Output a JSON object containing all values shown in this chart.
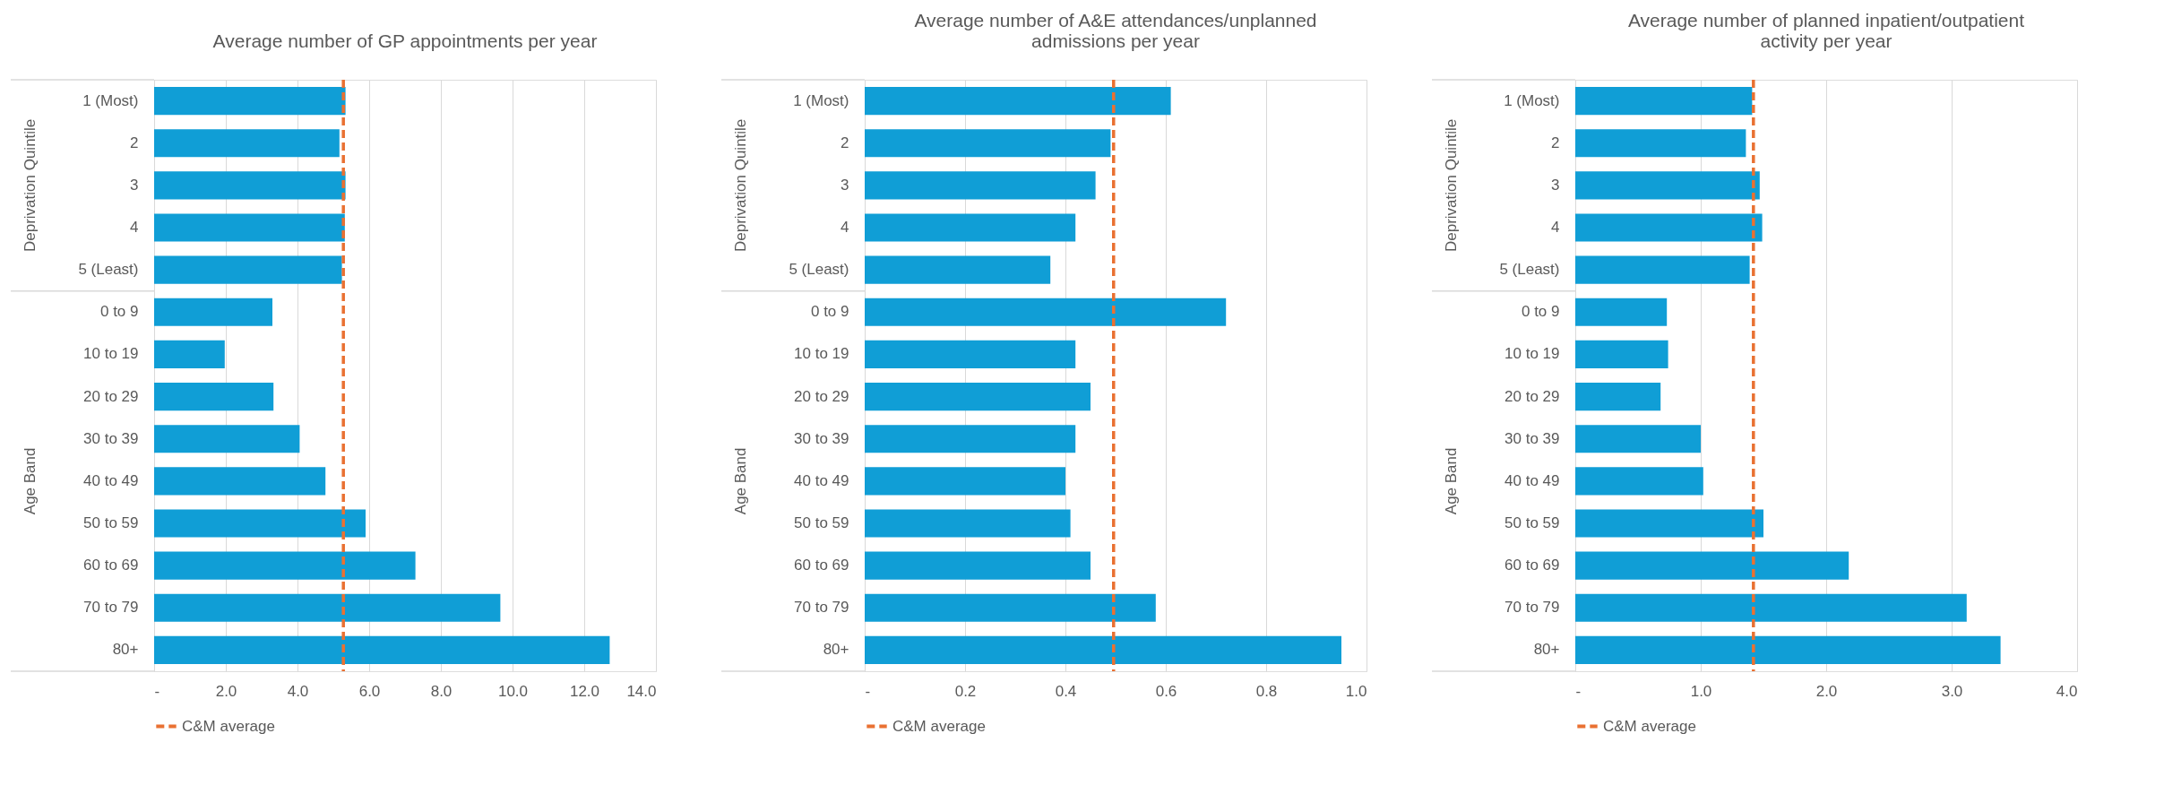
{
  "chart_data": [
    {
      "type": "bar",
      "orientation": "horizontal",
      "title": "Average number of GP appointments per year",
      "categories": [
        "1 (Most)",
        "2",
        "3",
        "4",
        "5 (Least)",
        "0 to 9",
        "10 to 19",
        "20 to 29",
        "30 to 39",
        "40 to 49",
        "50 to 59",
        "60 to 69",
        "70 to 79",
        "80+"
      ],
      "values": [
        5.34,
        5.17,
        5.34,
        5.32,
        5.24,
        3.3,
        1.97,
        3.33,
        4.06,
        4.78,
        5.9,
        7.29,
        9.66,
        12.71
      ],
      "color": "#109ed6",
      "xlim": [
        0,
        14
      ],
      "xticks": [
        {
          "value": 0,
          "label": "-"
        },
        {
          "value": 2,
          "label": "2.0"
        },
        {
          "value": 4,
          "label": "4.0"
        },
        {
          "value": 6,
          "label": "6.0"
        },
        {
          "value": 8,
          "label": "8.0"
        },
        {
          "value": 10,
          "label": "10.0"
        },
        {
          "value": 12,
          "label": "12.0"
        },
        {
          "value": 14,
          "label": "14.0"
        }
      ],
      "ref_lines": [
        {
          "axis": "x",
          "value": 5.28,
          "label": "C&M average",
          "color": "#e97132",
          "line_style": "dashed"
        }
      ],
      "annotations": [
        "Deprivation Quintile",
        "Age Band"
      ],
      "grid": "x",
      "legend": "bottom"
    },
    {
      "type": "bar",
      "orientation": "horizontal",
      "title": "Average number of A&E attendances/unplanned admissions per year",
      "categories": [
        "1 (Most)",
        "2",
        "3",
        "4",
        "5 (Least)",
        "0 to 9",
        "10 to 19",
        "20 to 29",
        "30 to 39",
        "40 to 49",
        "50 to 59",
        "60 to 69",
        "70 to 79",
        "80+"
      ],
      "values": [
        0.61,
        0.49,
        0.46,
        0.42,
        0.37,
        0.72,
        0.42,
        0.45,
        0.42,
        0.4,
        0.41,
        0.45,
        0.58,
        0.95
      ],
      "color": "#109ed6",
      "xlim": [
        0,
        1
      ],
      "xticks": [
        {
          "value": 0,
          "label": "-"
        },
        0.2,
        0.4,
        0.6,
        0.8,
        {
          "value": 1,
          "label": "1.0"
        }
      ],
      "ref_lines": [
        {
          "axis": "x",
          "value": 0.496,
          "label": "C&M average",
          "color": "#e97132",
          "line_style": "dashed"
        }
      ],
      "annotations": [
        "Deprivation Quintile",
        "Age Band"
      ],
      "grid": "x",
      "legend": "bottom"
    },
    {
      "type": "bar",
      "orientation": "horizontal",
      "title": "Average number of planned inpatient/outpatient activity per year",
      "categories": [
        "1 (Most)",
        "2",
        "3",
        "4",
        "5 (Least)",
        "0 to 9",
        "10 to 19",
        "20 to 29",
        "30 to 39",
        "40 to 49",
        "50 to 59",
        "60 to 69",
        "70 to 79",
        "80+"
      ],
      "values": [
        1.41,
        1.36,
        1.47,
        1.49,
        1.39,
        0.73,
        0.74,
        0.68,
        1.0,
        1.02,
        1.5,
        2.18,
        3.12,
        3.39
      ],
      "color": "#109ed6",
      "xlim": [
        0,
        4
      ],
      "xticks": [
        {
          "value": 0,
          "label": "-"
        },
        {
          "value": 1,
          "label": "1.0"
        },
        {
          "value": 2,
          "label": "2.0"
        },
        {
          "value": 3,
          "label": "3.0"
        },
        {
          "value": 4,
          "label": "4.0"
        }
      ],
      "ref_lines": [
        {
          "axis": "x",
          "value": 1.42,
          "label": "C&M average",
          "color": "#e97132",
          "line_style": "dashed"
        }
      ],
      "annotations": [
        "Deprivation Quintile",
        "Age Band"
      ],
      "grid": "x",
      "legend": "bottom"
    }
  ]
}
